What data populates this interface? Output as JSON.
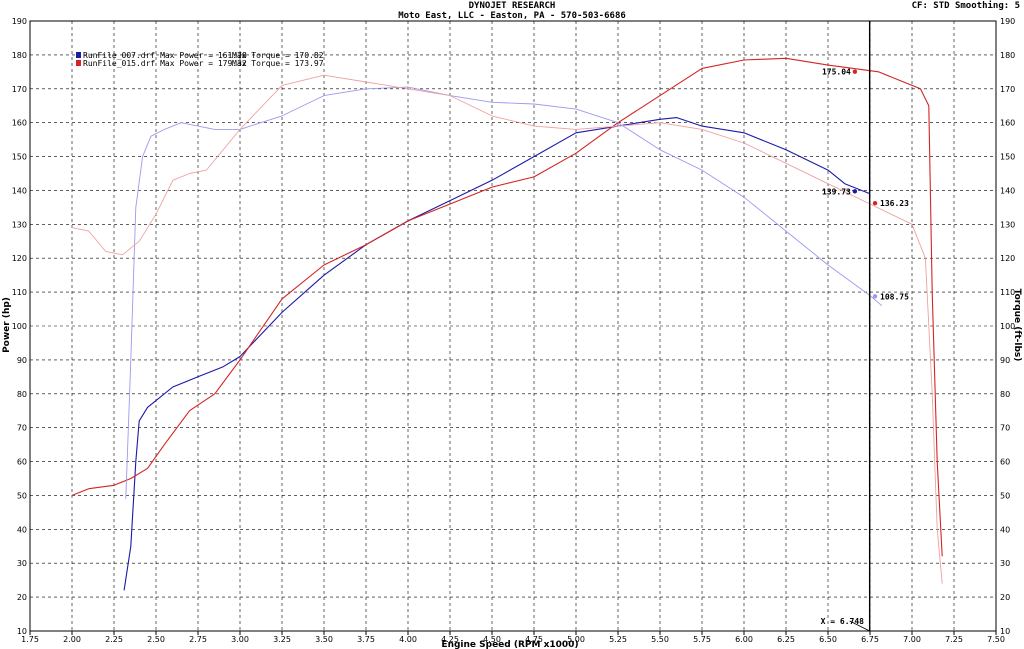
{
  "header": {
    "title": "DYNOJET RESEARCH",
    "subtitle": "Moto East, LLC - Easton, PA - 570-503-6686",
    "settings": "CF: STD  Smoothing: 5"
  },
  "colors": {
    "run007": "#1a1aa8",
    "run015": "#d42424",
    "run007_torque": "#9a9af0",
    "run015_torque": "#f0a0a0",
    "grid": "#000000",
    "cursor": "#000000"
  },
  "legend": [
    {
      "file": "RunFile_007.drf",
      "power_label": "Max Power = 161.78",
      "torque_label": "Max Torque = 170.82",
      "color": "#1a1aa8"
    },
    {
      "file": "RunFile_015.drf",
      "power_label": "Max Power = 179.32",
      "torque_label": "Max Torque = 173.97",
      "color": "#d42424"
    }
  ],
  "cursor": {
    "label": "X = 6.748",
    "x": 6.748
  },
  "chart_data": {
    "type": "line",
    "xlabel": "Engine Speed (RPM x1000)",
    "ylabel_left": "Power (hp)",
    "ylabel_right": "Torque (ft-lbs)",
    "xlim": [
      1.75,
      7.5
    ],
    "ylim": [
      10,
      190
    ],
    "x_ticks": [
      "1.75",
      "2.00",
      "2.25",
      "2.50",
      "2.75",
      "3.00",
      "3.25",
      "3.50",
      "3.75",
      "4.00",
      "4.25",
      "4.50",
      "4.75",
      "5.00",
      "5.25",
      "5.50",
      "5.75",
      "6.00",
      "6.25",
      "6.50",
      "6.75",
      "7.00",
      "7.25",
      "7.50"
    ],
    "y_ticks": [
      "10",
      "20",
      "30",
      "40",
      "50",
      "60",
      "70",
      "80",
      "90",
      "100",
      "110",
      "120",
      "130",
      "140",
      "150",
      "160",
      "170",
      "180",
      "190"
    ],
    "grid": true,
    "legend_position": "top-left",
    "series": [
      {
        "key": "run007_power",
        "measure": "power",
        "color": "#1a1aa8",
        "x": [
          2.31,
          2.35,
          2.38,
          2.4,
          2.45,
          2.5,
          2.6,
          2.75,
          2.9,
          3.0,
          3.25,
          3.5,
          3.75,
          4.0,
          4.25,
          4.5,
          4.75,
          5.0,
          5.25,
          5.5,
          5.6,
          5.75,
          6.0,
          6.25,
          6.5,
          6.6,
          6.75
        ],
        "y": [
          22,
          35,
          60,
          72,
          76,
          78,
          82,
          85,
          88,
          91,
          104,
          115,
          124,
          131,
          137,
          143,
          150,
          157,
          159,
          161,
          161.5,
          159,
          157,
          152,
          146,
          142,
          139
        ]
      },
      {
        "key": "run015_power",
        "measure": "power",
        "color": "#d42424",
        "x": [
          2.0,
          2.1,
          2.25,
          2.35,
          2.45,
          2.55,
          2.7,
          2.85,
          3.0,
          3.25,
          3.5,
          3.75,
          4.0,
          4.25,
          4.5,
          4.75,
          5.0,
          5.25,
          5.5,
          5.75,
          6.0,
          6.25,
          6.5,
          6.65,
          6.8,
          6.95,
          7.05,
          7.1,
          7.12,
          7.15,
          7.18
        ],
        "y": [
          50,
          52,
          53,
          55,
          58,
          65,
          75,
          80,
          90,
          108,
          118,
          124,
          131,
          136,
          141,
          144,
          151,
          160,
          168,
          176,
          178.5,
          179,
          177,
          176,
          175,
          172,
          170,
          165,
          110,
          60,
          32
        ]
      },
      {
        "key": "run007_torque",
        "measure": "torque",
        "color": "#9a9af0",
        "x": [
          2.32,
          2.35,
          2.38,
          2.42,
          2.47,
          2.55,
          2.65,
          2.75,
          2.85,
          3.0,
          3.25,
          3.5,
          3.75,
          4.0,
          4.25,
          4.5,
          4.75,
          5.0,
          5.25,
          5.5,
          5.75,
          6.0,
          6.25,
          6.5,
          6.75,
          6.82
        ],
        "y": [
          49,
          90,
          135,
          150,
          156,
          158,
          160,
          159,
          158,
          158,
          162,
          168,
          170,
          170.5,
          168,
          166,
          165.5,
          164,
          160,
          152,
          146,
          138,
          128,
          118,
          109,
          106
        ]
      },
      {
        "key": "run015_torque",
        "measure": "torque",
        "color": "#f0a0a0",
        "x": [
          2.0,
          2.1,
          2.2,
          2.3,
          2.4,
          2.5,
          2.6,
          2.7,
          2.8,
          3.0,
          3.25,
          3.5,
          3.75,
          4.0,
          4.25,
          4.5,
          4.75,
          5.0,
          5.25,
          5.5,
          5.75,
          6.0,
          6.25,
          6.5,
          6.75,
          7.0,
          7.08,
          7.12,
          7.15,
          7.18
        ],
        "y": [
          129,
          128,
          122,
          121,
          125,
          133,
          143,
          145,
          146,
          158,
          171,
          174,
          172,
          170,
          168,
          162,
          159,
          158,
          159,
          160,
          158,
          154,
          148,
          142,
          136,
          130,
          120,
          80,
          40,
          24
        ]
      }
    ],
    "annotations": [
      {
        "label": "175.04",
        "x": 6.66,
        "y": 175.04,
        "color": "#d42424"
      },
      {
        "label": "139.73",
        "x": 6.66,
        "y": 139.73,
        "color": "#1a1aa8"
      },
      {
        "label": "136.23",
        "x": 6.78,
        "y": 136.23,
        "color": "#d42424"
      },
      {
        "label": "108.75",
        "x": 6.78,
        "y": 108.75,
        "color": "#9a9af0"
      }
    ]
  }
}
